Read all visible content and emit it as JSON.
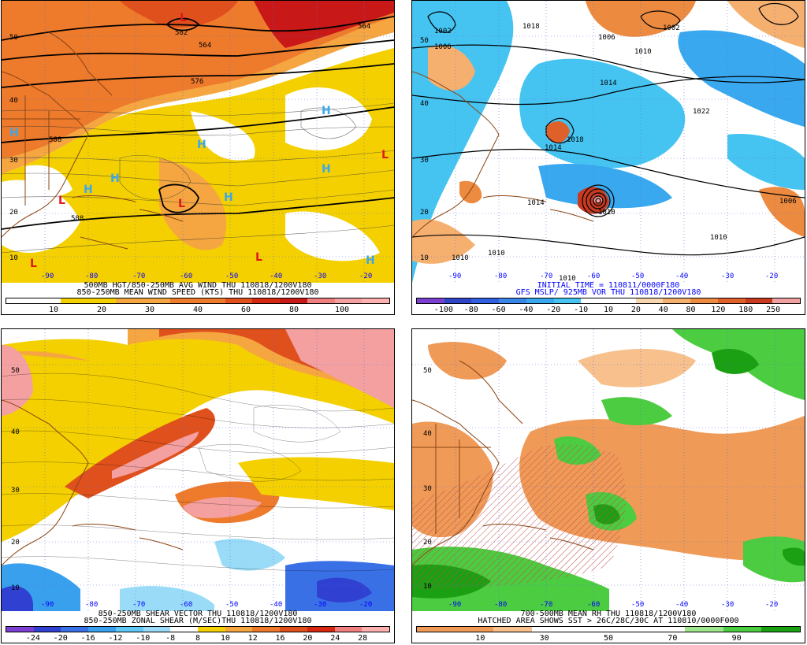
{
  "panels": [
    {
      "caption1": "500MB HGT/850-250MB AVG WIND THU 110818/1200V180",
      "caption2": "850-250MB MEAN WIND SPEED (KTS) THU 110818/1200V180",
      "caption_color": "#000000",
      "colorbar": [
        "#ffffff",
        "#ffffff",
        "#f4d000",
        "#f4d000",
        "#f5a640",
        "#f5a640",
        "#ee7a2c",
        "#ee7a2c",
        "#e0501c",
        "#d62810",
        "#c81818",
        "#f08080",
        "#f4a0a0",
        "#ffb0b0"
      ],
      "ticks": [
        "10",
        "20",
        "30",
        "40",
        "60",
        "80",
        "100"
      ],
      "lats": [
        "50",
        "40",
        "30",
        "20",
        "10"
      ],
      "lons": [
        "-90",
        "-80",
        "-70",
        "-60",
        "-50",
        "-40",
        "-30",
        "-20"
      ],
      "contour_labels": [
        "582",
        "564",
        "576",
        "588",
        "588",
        "564"
      ],
      "highs": [
        "H",
        "H",
        "H",
        "H",
        "H",
        "H",
        "H",
        "H"
      ],
      "lows": [
        "L",
        "L",
        "L",
        "L",
        "L",
        "L"
      ]
    },
    {
      "caption1": "INITIAL TIME = 110811/0000F180",
      "caption2": "GFS MSLP/ 925MB VOR THU 110818/1200V180",
      "caption_color": "#0000ff",
      "colorbar": [
        "#7b3fd1",
        "#3044c8",
        "#3060e0",
        "#3a86e8",
        "#39a8ef",
        "#45c4f2",
        "#ffffff",
        "#ffffff",
        "#f8d6b0",
        "#f5b070",
        "#ec8a40",
        "#e0602a",
        "#c83a20",
        "#f0a0a0"
      ],
      "ticks": [
        "-100",
        "-80",
        "-60",
        "-40",
        "-20",
        "-10",
        "10",
        "20",
        "40",
        "80",
        "120",
        "180",
        "250"
      ],
      "lats": [
        "50",
        "40",
        "30",
        "20",
        "10"
      ],
      "lons": [
        "-90",
        "-80",
        "-70",
        "-60",
        "-50",
        "-40",
        "-30",
        "-20"
      ],
      "contour_labels": [
        "1002",
        "1006",
        "1018",
        "1006",
        "1002",
        "1010",
        "1014",
        "1022",
        "1014",
        "1018",
        "1014",
        "1010",
        "1006",
        "1010",
        "1010",
        "1010",
        "1010"
      ],
      "highs": [],
      "lows": []
    },
    {
      "caption1": "850-250MB SHEAR VECTOR THU 110818/1200V180",
      "caption2": "850-250MB ZONAL SHEAR (M/SEC)THU 110818/1200V180",
      "caption_color": "#000000",
      "colorbar": [
        "#7b3fd1",
        "#3040d0",
        "#3a70e6",
        "#39a0ee",
        "#60c8f4",
        "#9adcf8",
        "#ffffff",
        "#f4d000",
        "#f5a640",
        "#ee7a2c",
        "#e0501c",
        "#d62810",
        "#f08080",
        "#ffb0b0"
      ],
      "ticks": [
        "-24",
        "-20",
        "-16",
        "-12",
        "-10",
        "-8",
        "8",
        "10",
        "12",
        "16",
        "20",
        "24",
        "28"
      ],
      "lats": [
        "50",
        "40",
        "30",
        "20",
        "10"
      ],
      "lons": [
        "-90",
        "-80",
        "-70",
        "-60",
        "-50",
        "-40",
        "-30",
        "-20"
      ],
      "contour_labels": [],
      "highs": [],
      "lows": []
    },
    {
      "caption1": "700-500MB MEAN RH THU 110818/1200V180",
      "caption2": "HATCHED AREA SHOWS SST > 26C/28C/30C AT 110810/0000F000",
      "caption_color": "#000000",
      "colorbar": [
        "#f09a58",
        "#f09a58",
        "#f7c08c",
        "#ffffff",
        "#ffffff",
        "#ffffff",
        "#ffffff",
        "#9ee68e",
        "#4ccc40",
        "#1aa012"
      ],
      "ticks": [
        "10",
        "30",
        "50",
        "70",
        "90"
      ],
      "lats": [
        "50",
        "40",
        "30",
        "20",
        "10"
      ],
      "lons": [
        "-90",
        "-80",
        "-70",
        "-60",
        "-50",
        "-40",
        "-30",
        "-20"
      ],
      "contour_labels": [],
      "highs": [],
      "lows": []
    }
  ]
}
